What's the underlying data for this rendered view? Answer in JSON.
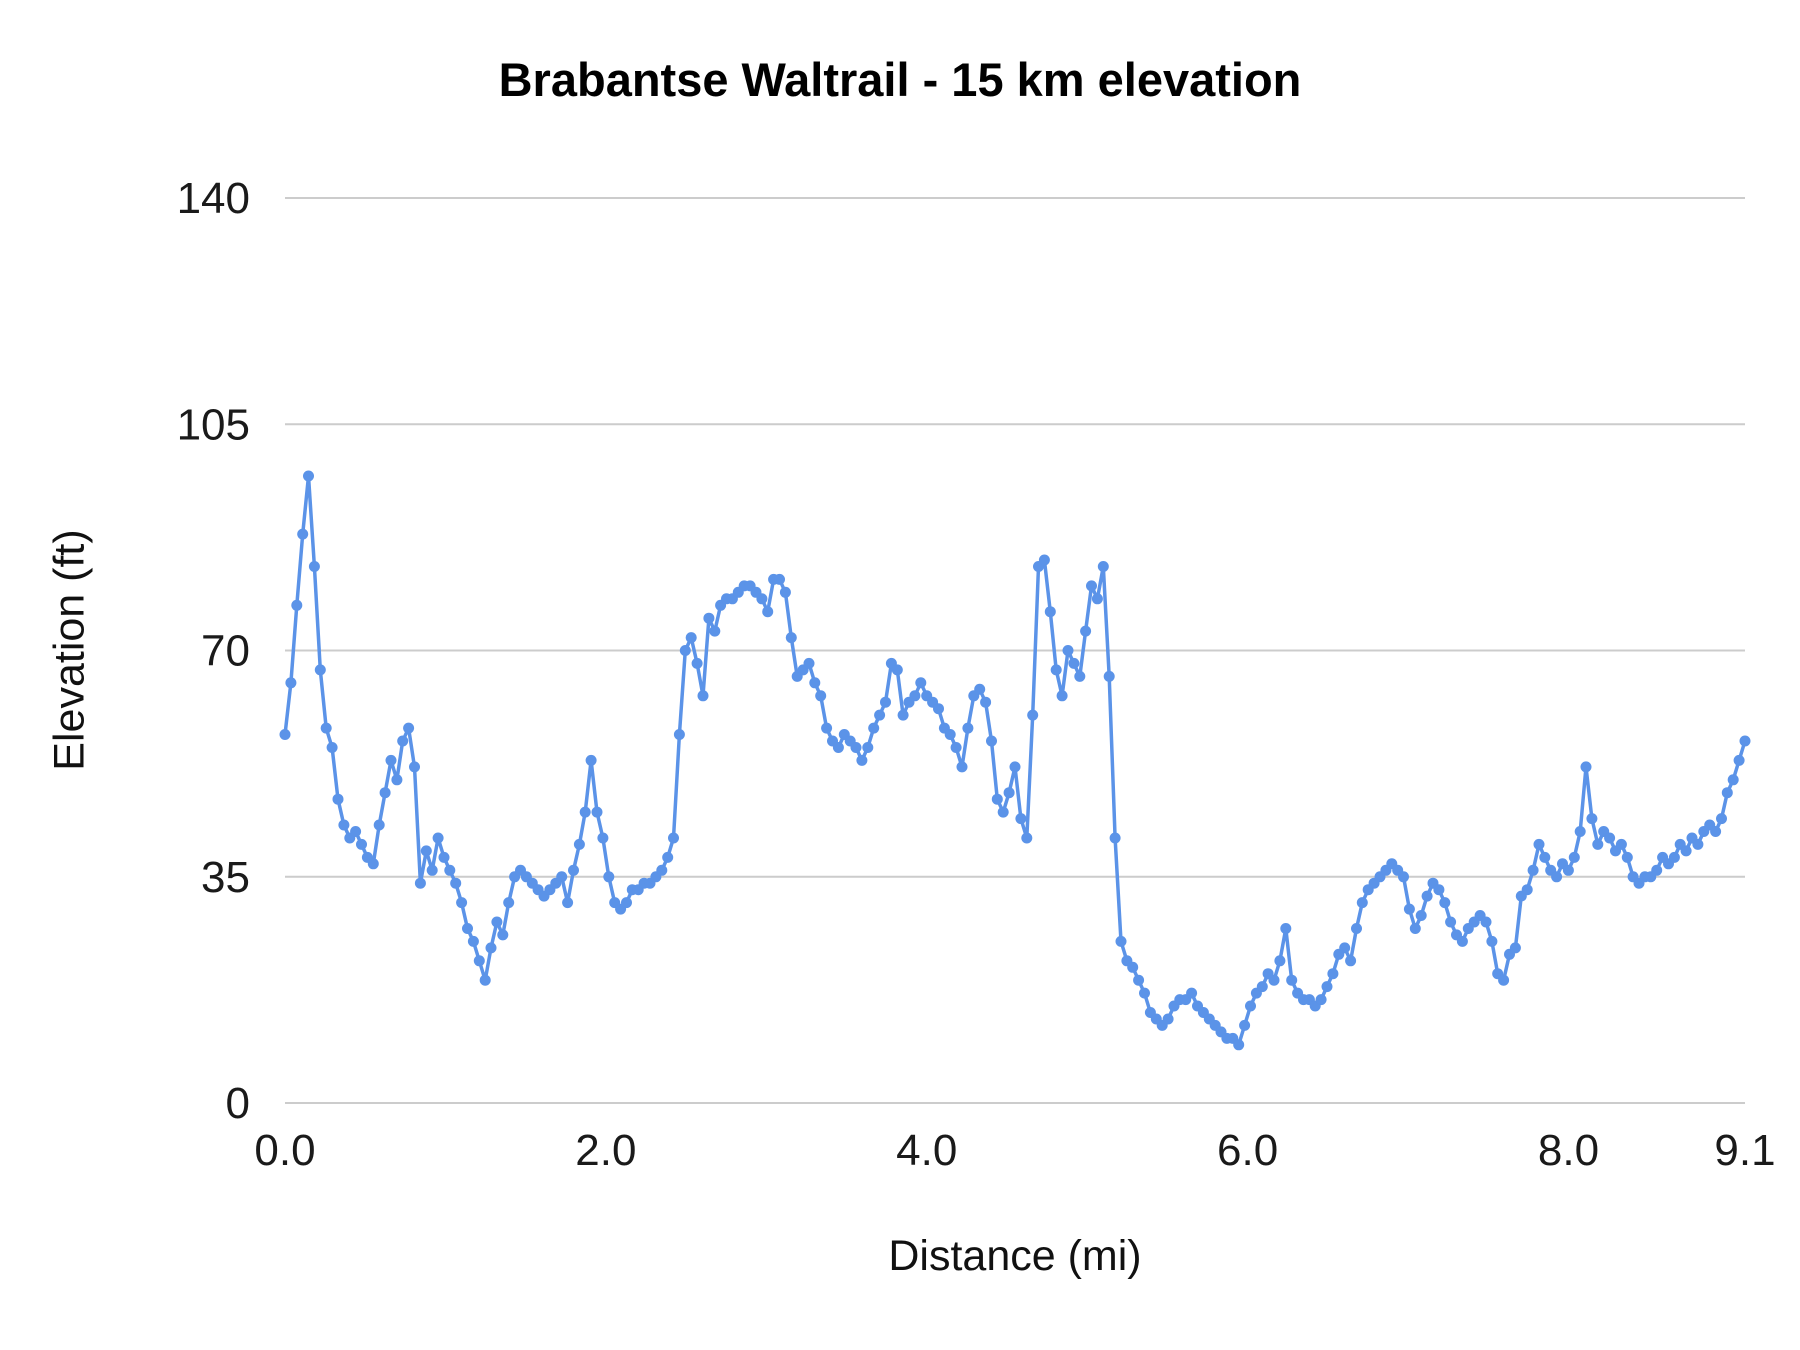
{
  "chart_data": {
    "type": "line",
    "title": "Brabantse Waltrail - 15 km elevation",
    "xlabel": "Distance (mi)",
    "ylabel": "Elevation (ft)",
    "x_range": [
      0,
      9.1
    ],
    "ylim": [
      0,
      140
    ],
    "grid": "horizontal",
    "legend": "none",
    "line_color": "#5b93e8",
    "grid_color": "#cccccc",
    "x_ticks": [
      {
        "value": 0,
        "label": "0.0"
      },
      {
        "value": 2,
        "label": "2.0"
      },
      {
        "value": 4,
        "label": "4.0"
      },
      {
        "value": 6,
        "label": "6.0"
      },
      {
        "value": 8,
        "label": "8.0"
      },
      {
        "value": 9.1,
        "label": "9.1"
      }
    ],
    "y_ticks": [
      {
        "value": 0,
        "label": "0"
      },
      {
        "value": 35,
        "label": "35"
      },
      {
        "value": 70,
        "label": "70"
      },
      {
        "value": 105,
        "label": "105"
      },
      {
        "value": 140,
        "label": "140"
      }
    ],
    "series": [
      {
        "name": "Elevation (ft)",
        "x_even_spacing": true,
        "values": [
          57,
          65,
          77,
          88,
          97,
          83,
          67,
          58,
          55,
          47,
          43,
          41,
          42,
          40,
          38,
          37,
          43,
          48,
          53,
          50,
          56,
          58,
          52,
          34,
          39,
          36,
          41,
          38,
          36,
          34,
          31,
          27,
          25,
          22,
          19,
          24,
          28,
          26,
          31,
          35,
          36,
          35,
          34,
          33,
          32,
          33,
          34,
          35,
          31,
          36,
          40,
          45,
          53,
          45,
          41,
          35,
          31,
          30,
          31,
          33,
          33,
          34,
          34,
          35,
          36,
          38,
          41,
          57,
          70,
          72,
          68,
          63,
          75,
          73,
          77,
          78,
          78,
          79,
          80,
          80,
          79,
          78,
          76,
          81,
          81,
          79,
          72,
          66,
          67,
          68,
          65,
          63,
          58,
          56,
          55,
          57,
          56,
          55,
          53,
          55,
          58,
          60,
          62,
          68,
          67,
          60,
          62,
          63,
          65,
          63,
          62,
          61,
          58,
          57,
          55,
          52,
          58,
          63,
          64,
          62,
          56,
          47,
          45,
          48,
          52,
          44,
          41,
          60,
          83,
          84,
          76,
          67,
          63,
          70,
          68,
          66,
          73,
          80,
          78,
          83,
          66,
          41,
          25,
          22,
          21,
          19,
          17,
          14,
          13,
          12,
          13,
          15,
          16,
          16,
          17,
          15,
          14,
          13,
          12,
          11,
          10,
          10,
          9,
          12,
          15,
          17,
          18,
          20,
          19,
          22,
          27,
          19,
          17,
          16,
          16,
          15,
          16,
          18,
          20,
          23,
          24,
          22,
          27,
          31,
          33,
          34,
          35,
          36,
          37,
          36,
          35,
          30,
          27,
          29,
          32,
          34,
          33,
          31,
          28,
          26,
          25,
          27,
          28,
          29,
          28,
          25,
          20,
          19,
          23,
          24,
          32,
          33,
          36,
          40,
          38,
          36,
          35,
          37,
          36,
          38,
          42,
          52,
          44,
          40,
          42,
          41,
          39,
          40,
          38,
          35,
          34,
          35,
          35,
          36,
          38,
          37,
          38,
          40,
          39,
          41,
          40,
          42,
          43,
          42,
          44,
          48,
          50,
          53,
          56
        ]
      }
    ]
  }
}
